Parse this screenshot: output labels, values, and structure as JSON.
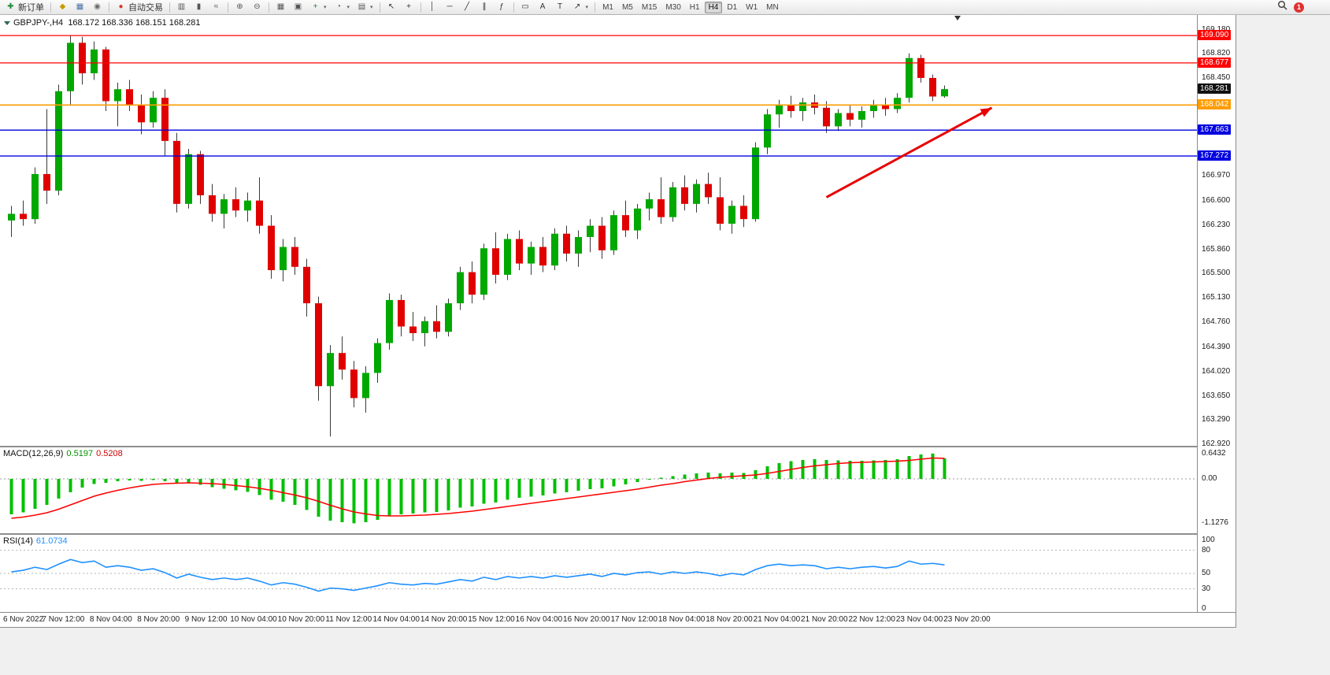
{
  "app": {
    "notification_count": "1"
  },
  "toolbar": {
    "active_timeframe": "H4",
    "items": [
      {
        "t": "btn",
        "name": "new-order-button",
        "icon": {
          "name": "new-order-icon",
          "glyph": "✚",
          "color": "#1d8a3a"
        },
        "label": "新订单"
      },
      {
        "t": "sep"
      },
      {
        "t": "icon",
        "name": "mql-wizard-icon",
        "glyph": "◆",
        "color": "#c79a00"
      },
      {
        "t": "icon",
        "name": "profiles-icon",
        "glyph": "▦",
        "color": "#4a6fa5"
      },
      {
        "t": "icon",
        "name": "alerts-icon",
        "glyph": "◉",
        "color": "#6a6a6a"
      },
      {
        "t": "sep"
      },
      {
        "t": "btn",
        "name": "autotrading-button",
        "icon": {
          "name": "autotrading-status-icon",
          "glyph": "●",
          "color": "#d43b2a"
        },
        "label": "自动交易"
      },
      {
        "t": "sep"
      },
      {
        "t": "icon",
        "name": "bar-chart-icon",
        "glyph": "▥",
        "color": "#555"
      },
      {
        "t": "icon",
        "name": "candlestick-chart-icon",
        "glyph": "▮",
        "color": "#555"
      },
      {
        "t": "icon",
        "name": "line-chart-icon",
        "glyph": "≈",
        "color": "#555"
      },
      {
        "t": "sep"
      },
      {
        "t": "icon",
        "name": "zoom-in-icon",
        "glyph": "⊕",
        "color": "#555"
      },
      {
        "t": "icon",
        "name": "zoom-out-icon",
        "glyph": "⊖",
        "color": "#555"
      },
      {
        "t": "sep"
      },
      {
        "t": "icon",
        "name": "tile-windows-icon",
        "glyph": "▦",
        "color": "#555"
      },
      {
        "t": "icon",
        "name": "auto-arrange-icon",
        "glyph": "▣",
        "color": "#555"
      },
      {
        "t": "icon",
        "name": "indicators-icon",
        "glyph": "+",
        "color": "#1d8a3a",
        "caret": true
      },
      {
        "t": "icon",
        "name": "periods-icon",
        "glyph": "◔",
        "color": "#555",
        "caret": true
      },
      {
        "t": "icon",
        "name": "templates-icon",
        "glyph": "▤",
        "color": "#555",
        "caret": true
      },
      {
        "t": "sep"
      },
      {
        "t": "icon",
        "name": "cursor-icon",
        "glyph": "↖",
        "color": "#333"
      },
      {
        "t": "icon",
        "name": "crosshair-icon",
        "glyph": "+",
        "color": "#333"
      },
      {
        "t": "sep"
      },
      {
        "t": "icon",
        "name": "vertical-line-icon",
        "glyph": "│",
        "color": "#333"
      },
      {
        "t": "icon",
        "name": "horizontal-line-icon",
        "glyph": "─",
        "color": "#333"
      },
      {
        "t": "icon",
        "name": "trendline-icon",
        "glyph": "╱",
        "color": "#333"
      },
      {
        "t": "icon",
        "name": "equidistant-channel-icon",
        "glyph": "∥",
        "color": "#333"
      },
      {
        "t": "icon",
        "name": "fibonacci-icon",
        "glyph": "ƒ",
        "color": "#333"
      },
      {
        "t": "sep"
      },
      {
        "t": "icon",
        "name": "shapes-icon",
        "glyph": "▭",
        "color": "#333"
      },
      {
        "t": "icon",
        "name": "text-icon",
        "glyph": "A",
        "color": "#333"
      },
      {
        "t": "icon",
        "name": "text-label-icon",
        "glyph": "T",
        "color": "#333"
      },
      {
        "t": "icon",
        "name": "arrows-icon",
        "glyph": "↗",
        "color": "#333",
        "caret": true
      },
      {
        "t": "sep"
      },
      {
        "t": "tf",
        "label": "M1"
      },
      {
        "t": "tf",
        "label": "M5"
      },
      {
        "t": "tf",
        "label": "M15"
      },
      {
        "t": "tf",
        "label": "M30"
      },
      {
        "t": "tf",
        "label": "H1"
      },
      {
        "t": "tf",
        "label": "H4"
      },
      {
        "t": "tf",
        "label": "D1"
      },
      {
        "t": "tf",
        "label": "W1"
      },
      {
        "t": "tf",
        "label": "MN"
      }
    ]
  },
  "chart": {
    "symbol_period": "GBPJPY-,H4",
    "ohlc": "168.172 168.336 168.151 168.281"
  },
  "chart_data": {
    "type": "candlestick",
    "symbol": "GBPJPY-",
    "timeframe": "H4",
    "quote": {
      "open": 168.172,
      "high": 168.336,
      "low": 168.151,
      "close": 168.281
    },
    "colors": {
      "up": "#00A800",
      "down": "#E00000",
      "wick": "#3a3a3a",
      "macd_hist": "#00BF00",
      "macd_signal": "#FF0000",
      "rsi_line": "#1E90FF"
    },
    "price_axis": {
      "ylim": [
        162.9,
        169.4
      ],
      "labels": [
        169.18,
        168.82,
        168.45,
        166.97,
        166.6,
        166.23,
        165.86,
        165.5,
        165.13,
        164.76,
        164.39,
        164.02,
        163.65,
        163.29,
        162.92
      ],
      "badges": [
        {
          "value": 169.09,
          "label": "169.090",
          "bg": "#FF0000",
          "fg": "#ffffff"
        },
        {
          "value": 168.677,
          "label": "168.677",
          "bg": "#FF0000",
          "fg": "#ffffff"
        },
        {
          "value": 168.281,
          "label": "168.281",
          "bg": "#101010",
          "fg": "#ffffff"
        },
        {
          "value": 168.042,
          "label": "168.042",
          "bg": "#FF9C00",
          "fg": "#ffffff"
        },
        {
          "value": 167.663,
          "label": "167.663",
          "bg": "#0000E0",
          "fg": "#ffffff"
        },
        {
          "value": 167.272,
          "label": "167.272",
          "bg": "#0000E0",
          "fg": "#ffffff"
        }
      ]
    },
    "hlines": [
      {
        "price": 169.09,
        "color": "#FF0000",
        "width": 1.2
      },
      {
        "price": 168.677,
        "color": "#FF0000",
        "width": 1.2
      },
      {
        "price": 168.042,
        "color": "#FF9C00",
        "width": 1.6
      },
      {
        "price": 167.663,
        "color": "#0000E0",
        "width": 1.3
      },
      {
        "price": 167.272,
        "color": "#0000E0",
        "width": 1.3
      }
    ],
    "annotation_arrow": {
      "from": {
        "index": 69,
        "price": 166.65
      },
      "to": {
        "index": 83,
        "price": 168.0
      },
      "color": "#E80000",
      "width": 3
    },
    "candles": [
      [
        166.3,
        166.52,
        166.05,
        166.4
      ],
      [
        166.4,
        166.6,
        166.22,
        166.32
      ],
      [
        166.32,
        167.1,
        166.25,
        167.0
      ],
      [
        167.0,
        167.98,
        166.55,
        166.75
      ],
      [
        166.75,
        168.35,
        166.68,
        168.25
      ],
      [
        168.25,
        169.09,
        168.05,
        168.98
      ],
      [
        168.98,
        169.07,
        168.35,
        168.52
      ],
      [
        168.52,
        169.0,
        168.42,
        168.88
      ],
      [
        168.88,
        168.92,
        167.95,
        168.1
      ],
      [
        168.1,
        168.38,
        167.72,
        168.28
      ],
      [
        168.28,
        168.42,
        167.95,
        168.05
      ],
      [
        168.05,
        168.2,
        167.6,
        167.78
      ],
      [
        167.78,
        168.25,
        167.7,
        168.15
      ],
      [
        168.15,
        168.28,
        167.28,
        167.5
      ],
      [
        167.5,
        167.62,
        166.42,
        166.55
      ],
      [
        166.55,
        167.38,
        166.48,
        167.3
      ],
      [
        167.3,
        167.35,
        166.55,
        166.68
      ],
      [
        166.68,
        166.85,
        166.28,
        166.4
      ],
      [
        166.4,
        166.7,
        166.18,
        166.62
      ],
      [
        166.62,
        166.8,
        166.35,
        166.45
      ],
      [
        166.45,
        166.72,
        166.28,
        166.6
      ],
      [
        166.6,
        166.95,
        166.1,
        166.22
      ],
      [
        166.22,
        166.38,
        165.42,
        165.55
      ],
      [
        165.55,
        166.02,
        165.38,
        165.9
      ],
      [
        165.9,
        166.05,
        165.48,
        165.6
      ],
      [
        165.6,
        165.72,
        164.85,
        165.05
      ],
      [
        165.05,
        165.15,
        163.58,
        163.8
      ],
      [
        163.8,
        164.42,
        163.04,
        164.3
      ],
      [
        164.3,
        164.55,
        163.9,
        164.05
      ],
      [
        164.05,
        164.18,
        163.48,
        163.62
      ],
      [
        163.62,
        164.1,
        163.4,
        164.0
      ],
      [
        164.0,
        164.52,
        163.85,
        164.45
      ],
      [
        164.45,
        165.2,
        164.35,
        165.1
      ],
      [
        165.1,
        165.18,
        164.55,
        164.7
      ],
      [
        164.7,
        164.92,
        164.48,
        164.6
      ],
      [
        164.6,
        164.85,
        164.4,
        164.78
      ],
      [
        164.78,
        165.02,
        164.52,
        164.62
      ],
      [
        164.62,
        165.12,
        164.55,
        165.05
      ],
      [
        165.05,
        165.6,
        164.95,
        165.52
      ],
      [
        165.52,
        165.68,
        165.05,
        165.18
      ],
      [
        165.18,
        165.95,
        165.1,
        165.88
      ],
      [
        165.88,
        166.12,
        165.35,
        165.48
      ],
      [
        165.48,
        166.1,
        165.4,
        166.02
      ],
      [
        166.02,
        166.15,
        165.55,
        165.65
      ],
      [
        165.65,
        165.98,
        165.48,
        165.9
      ],
      [
        165.9,
        166.05,
        165.52,
        165.62
      ],
      [
        165.62,
        166.18,
        165.55,
        166.1
      ],
      [
        166.1,
        166.22,
        165.68,
        165.8
      ],
      [
        165.8,
        166.15,
        165.6,
        166.05
      ],
      [
        166.05,
        166.32,
        165.82,
        166.22
      ],
      [
        166.22,
        166.35,
        165.72,
        165.85
      ],
      [
        165.85,
        166.45,
        165.78,
        166.38
      ],
      [
        166.38,
        166.6,
        166.05,
        166.15
      ],
      [
        166.15,
        166.55,
        166.02,
        166.48
      ],
      [
        166.48,
        166.72,
        166.3,
        166.62
      ],
      [
        166.62,
        166.95,
        166.25,
        166.35
      ],
      [
        166.35,
        166.88,
        166.28,
        166.8
      ],
      [
        166.8,
        166.98,
        166.45,
        166.55
      ],
      [
        166.55,
        166.92,
        166.42,
        166.85
      ],
      [
        166.85,
        167.02,
        166.55,
        166.65
      ],
      [
        166.65,
        166.95,
        166.15,
        166.25
      ],
      [
        166.25,
        166.6,
        166.1,
        166.52
      ],
      [
        166.52,
        166.68,
        166.2,
        166.32
      ],
      [
        166.32,
        167.48,
        166.28,
        167.4
      ],
      [
        167.4,
        167.98,
        167.3,
        167.9
      ],
      [
        167.9,
        168.12,
        167.7,
        168.05
      ],
      [
        168.05,
        168.18,
        167.85,
        167.95
      ],
      [
        167.95,
        168.15,
        167.8,
        168.08
      ],
      [
        168.08,
        168.2,
        167.9,
        168.0
      ],
      [
        168.0,
        168.1,
        167.62,
        167.72
      ],
      [
        167.72,
        167.98,
        167.65,
        167.92
      ],
      [
        167.92,
        168.05,
        167.72,
        167.82
      ],
      [
        167.82,
        168.02,
        167.7,
        167.95
      ],
      [
        167.95,
        168.12,
        167.85,
        168.05
      ],
      [
        168.05,
        168.15,
        167.88,
        167.98
      ],
      [
        167.98,
        168.22,
        167.92,
        168.15
      ],
      [
        168.15,
        168.82,
        168.08,
        168.75
      ],
      [
        168.75,
        168.8,
        168.38,
        168.45
      ],
      [
        168.45,
        168.5,
        168.1,
        168.17
      ],
      [
        168.172,
        168.336,
        168.151,
        168.281
      ]
    ],
    "time_labels": [
      "6 Nov 2022",
      "7 Nov 12:00",
      "8 Nov 04:00",
      "8 Nov 20:00",
      "9 Nov 12:00",
      "10 Nov 04:00",
      "10 Nov 20:00",
      "11 Nov 12:00",
      "14 Nov 04:00",
      "14 Nov 20:00",
      "15 Nov 12:00",
      "16 Nov 04:00",
      "16 Nov 20:00",
      "17 Nov 12:00",
      "18 Nov 04:00",
      "18 Nov 20:00",
      "21 Nov 04:00",
      "21 Nov 20:00",
      "22 Nov 12:00",
      "23 Nov 04:00",
      "23 Nov 20:00"
    ],
    "macd": {
      "label": "MACD(12,26,9)",
      "main_value": "0.5197",
      "signal_value": "0.5208",
      "ylim": [
        -1.38,
        0.8
      ],
      "axis": [
        {
          "v": 0.6432,
          "label": "0.6432"
        },
        {
          "v": 0,
          "label": "0.00"
        },
        {
          "v": -1.1276,
          "label": "-1.1276"
        }
      ],
      "histogram": [
        -0.9,
        -0.85,
        -0.76,
        -0.66,
        -0.5,
        -0.34,
        -0.22,
        -0.13,
        -0.1,
        -0.06,
        -0.04,
        -0.05,
        -0.03,
        -0.06,
        -0.12,
        -0.1,
        -0.15,
        -0.21,
        -0.25,
        -0.29,
        -0.33,
        -0.41,
        -0.53,
        -0.58,
        -0.66,
        -0.79,
        -0.96,
        -1.06,
        -1.1,
        -1.1276,
        -1.1,
        -1.04,
        -0.95,
        -0.9,
        -0.88,
        -0.85,
        -0.84,
        -0.8,
        -0.73,
        -0.7,
        -0.63,
        -0.6,
        -0.53,
        -0.48,
        -0.45,
        -0.42,
        -0.37,
        -0.34,
        -0.3,
        -0.26,
        -0.24,
        -0.19,
        -0.14,
        -0.08,
        -0.02,
        0.03,
        0.07,
        0.11,
        0.14,
        0.16,
        0.14,
        0.16,
        0.15,
        0.22,
        0.32,
        0.4,
        0.45,
        0.48,
        0.5,
        0.48,
        0.47,
        0.46,
        0.46,
        0.47,
        0.48,
        0.5,
        0.58,
        0.62,
        0.6432,
        0.5197
      ],
      "signal": [
        -1.0,
        -0.97,
        -0.92,
        -0.86,
        -0.77,
        -0.66,
        -0.55,
        -0.44,
        -0.36,
        -0.29,
        -0.23,
        -0.18,
        -0.14,
        -0.12,
        -0.11,
        -0.1,
        -0.11,
        -0.12,
        -0.14,
        -0.17,
        -0.2,
        -0.24,
        -0.29,
        -0.35,
        -0.41,
        -0.48,
        -0.57,
        -0.67,
        -0.76,
        -0.84,
        -0.89,
        -0.93,
        -0.94,
        -0.94,
        -0.93,
        -0.92,
        -0.9,
        -0.88,
        -0.85,
        -0.82,
        -0.78,
        -0.74,
        -0.7,
        -0.66,
        -0.62,
        -0.58,
        -0.54,
        -0.5,
        -0.46,
        -0.42,
        -0.38,
        -0.34,
        -0.3,
        -0.26,
        -0.21,
        -0.16,
        -0.12,
        -0.07,
        -0.03,
        0.01,
        0.04,
        0.06,
        0.08,
        0.1,
        0.14,
        0.19,
        0.24,
        0.29,
        0.33,
        0.36,
        0.39,
        0.41,
        0.42,
        0.43,
        0.44,
        0.45,
        0.47,
        0.5,
        0.53,
        0.5208
      ]
    },
    "rsi": {
      "label": "RSI(14)",
      "value": "61.0734",
      "axis": [
        100,
        80,
        50,
        30,
        0
      ],
      "levels": [
        80,
        50,
        30
      ],
      "values": [
        52,
        54,
        58,
        55,
        62,
        68,
        64,
        66,
        58,
        60,
        58,
        54,
        56,
        51,
        44,
        49,
        45,
        42,
        44,
        42,
        44,
        40,
        35,
        38,
        36,
        32,
        27,
        31,
        30,
        28,
        31,
        34,
        38,
        36,
        35,
        37,
        36,
        39,
        42,
        40,
        45,
        42,
        46,
        44,
        46,
        44,
        47,
        45,
        47,
        49,
        46,
        50,
        48,
        51,
        52,
        49,
        52,
        50,
        52,
        50,
        47,
        50,
        48,
        55,
        60,
        62,
        60,
        61,
        60,
        56,
        58,
        56,
        58,
        59,
        57,
        59,
        66,
        62,
        63,
        61.07
      ]
    }
  }
}
